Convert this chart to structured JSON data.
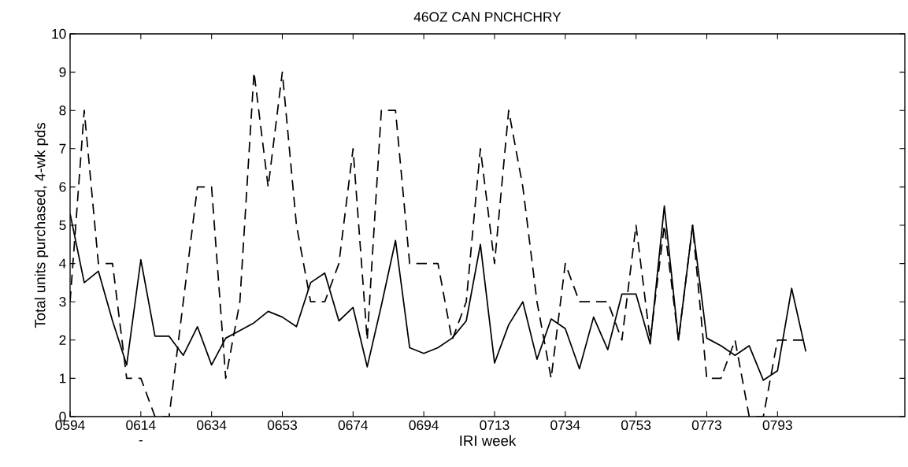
{
  "chart_data": {
    "type": "line",
    "title": "46OZ CAN PNCHCHRY",
    "xlabel": "IRI week",
    "ylabel": "Total units purchased, 4-wk pds",
    "annotations": [
      "-"
    ],
    "categories": [
      "0594",
      null,
      null,
      null,
      null,
      "0614",
      null,
      null,
      null,
      null,
      "0634",
      null,
      null,
      null,
      null,
      "0653",
      null,
      null,
      null,
      null,
      "0674",
      null,
      null,
      null,
      null,
      "0694",
      null,
      null,
      null,
      null,
      "0713",
      null,
      null,
      null,
      null,
      "0734",
      null,
      null,
      null,
      null,
      "0753",
      null,
      null,
      null,
      null,
      "0773",
      null,
      null,
      null,
      null,
      "0793",
      null,
      null,
      null,
      null,
      null,
      null,
      null,
      null,
      null
    ],
    "series": [
      {
        "color": "#000000",
        "line_style": "solid",
        "values": [
          5.3,
          3.5,
          3.8,
          2.5,
          1.35,
          4.1,
          2.1,
          2.1,
          1.6,
          2.35,
          1.35,
          2.05,
          2.25,
          2.45,
          2.75,
          2.6,
          2.35,
          3.5,
          3.75,
          2.5,
          2.85,
          1.3,
          2.9,
          4.6,
          1.8,
          1.65,
          1.8,
          2.05,
          2.5,
          4.5,
          1.4,
          2.4,
          3.0,
          1.5,
          2.55,
          2.3,
          1.25,
          2.6,
          1.75,
          3.2,
          3.2,
          1.9,
          5.5,
          2.0,
          5.0,
          2.05,
          1.85,
          1.6,
          1.85,
          0.95,
          1.2,
          3.35,
          1.7,
          null,
          null,
          null,
          null,
          null,
          null,
          null
        ]
      },
      {
        "color": "#000000",
        "line_style": "dashed",
        "values": [
          3,
          8,
          4,
          4,
          1,
          1,
          0,
          0,
          3,
          6,
          6,
          1,
          3,
          9,
          6,
          9,
          5,
          3,
          3,
          4,
          7,
          2,
          8,
          8,
          4,
          4,
          4,
          2,
          3,
          7,
          4,
          8,
          6,
          3,
          1,
          4,
          3,
          3,
          3,
          2,
          5,
          2,
          5,
          2,
          5,
          1,
          1,
          2,
          0,
          0,
          2,
          2,
          2,
          null,
          null,
          null,
          null,
          null,
          null,
          null
        ]
      }
    ],
    "ylim": [
      0,
      10
    ],
    "yticks": [
      0,
      1,
      2,
      3,
      4,
      5,
      6,
      7,
      8,
      9,
      10
    ]
  }
}
